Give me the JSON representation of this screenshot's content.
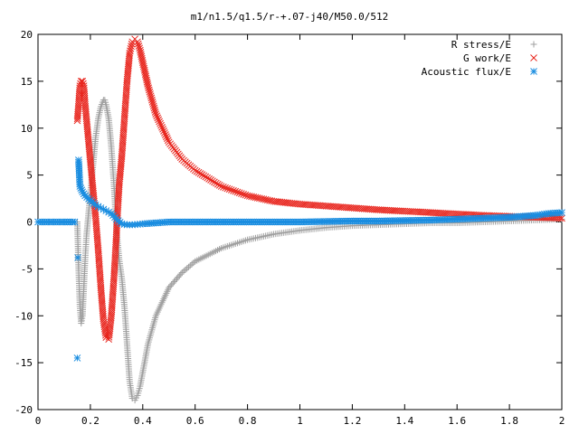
{
  "chart_data": {
    "type": "scatter",
    "title": "m1/n1.5/q1.5/r-+.07-j40/M50.0/512",
    "xlabel": "",
    "ylabel": "",
    "xlim": [
      0,
      2
    ],
    "ylim": [
      -20,
      20
    ],
    "x_ticks": [
      "0",
      "0.2",
      "0.4",
      "0.6",
      "0.8",
      "1",
      "1.2",
      "1.4",
      "1.6",
      "1.8",
      "2"
    ],
    "y_ticks": [
      "20",
      "15",
      "10",
      "5",
      "0",
      "-5",
      "-10",
      "-15",
      "-20"
    ],
    "grid": false,
    "legend_position": "top-right",
    "series": [
      {
        "name": "R stress/E",
        "marker": "plus",
        "color": "#a0a0a0",
        "points": [
          [
            0.15,
            0
          ],
          [
            0.155,
            -5
          ],
          [
            0.16,
            -9
          ],
          [
            0.165,
            -10.8
          ],
          [
            0.17,
            -10
          ],
          [
            0.175,
            -7
          ],
          [
            0.18,
            -4
          ],
          [
            0.185,
            -1.5
          ],
          [
            0.2,
            3
          ],
          [
            0.21,
            6
          ],
          [
            0.22,
            9
          ],
          [
            0.23,
            11
          ],
          [
            0.24,
            12.3
          ],
          [
            0.25,
            13
          ],
          [
            0.255,
            13
          ],
          [
            0.26,
            12.5
          ],
          [
            0.27,
            11
          ],
          [
            0.28,
            8
          ],
          [
            0.29,
            4
          ],
          [
            0.3,
            -1
          ],
          [
            0.31,
            -4
          ],
          [
            0.32,
            -6
          ],
          [
            0.33,
            -9
          ],
          [
            0.34,
            -13
          ],
          [
            0.35,
            -17
          ],
          [
            0.36,
            -18.8
          ],
          [
            0.37,
            -19
          ],
          [
            0.38,
            -18.5
          ],
          [
            0.39,
            -17.5
          ],
          [
            0.4,
            -16
          ],
          [
            0.42,
            -13
          ],
          [
            0.45,
            -10
          ],
          [
            0.5,
            -7
          ],
          [
            0.55,
            -5.4
          ],
          [
            0.6,
            -4.2
          ],
          [
            0.7,
            -2.8
          ],
          [
            0.8,
            -1.9
          ],
          [
            0.9,
            -1.3
          ],
          [
            1.0,
            -0.9
          ],
          [
            1.1,
            -0.6
          ],
          [
            1.2,
            -0.4
          ],
          [
            1.3,
            -0.3
          ],
          [
            1.4,
            -0.2
          ],
          [
            1.5,
            -0.1
          ],
          [
            1.6,
            -0.1
          ],
          [
            1.7,
            0
          ],
          [
            1.8,
            0.1
          ],
          [
            1.9,
            0.2
          ],
          [
            2.0,
            0.3
          ]
        ]
      },
      {
        "name": "G work/E",
        "marker": "cross",
        "color": "#e8251d",
        "points": [
          [
            0.15,
            10.8
          ],
          [
            0.155,
            12.5
          ],
          [
            0.16,
            14.5
          ],
          [
            0.165,
            15
          ],
          [
            0.17,
            15
          ],
          [
            0.175,
            14.5
          ],
          [
            0.18,
            12.5
          ],
          [
            0.19,
            9.5
          ],
          [
            0.2,
            6.5
          ],
          [
            0.21,
            3.5
          ],
          [
            0.22,
            0.5
          ],
          [
            0.23,
            -3
          ],
          [
            0.24,
            -7
          ],
          [
            0.25,
            -10.5
          ],
          [
            0.26,
            -12.3
          ],
          [
            0.27,
            -12.5
          ],
          [
            0.28,
            -10
          ],
          [
            0.29,
            -6
          ],
          [
            0.3,
            -1
          ],
          [
            0.31,
            4
          ],
          [
            0.32,
            7
          ],
          [
            0.33,
            11
          ],
          [
            0.34,
            15
          ],
          [
            0.35,
            18
          ],
          [
            0.36,
            19.2
          ],
          [
            0.37,
            19.5
          ],
          [
            0.38,
            19.2
          ],
          [
            0.39,
            18.3
          ],
          [
            0.4,
            17
          ],
          [
            0.42,
            14.5
          ],
          [
            0.45,
            11.5
          ],
          [
            0.5,
            8.5
          ],
          [
            0.55,
            6.7
          ],
          [
            0.6,
            5.5
          ],
          [
            0.7,
            3.8
          ],
          [
            0.8,
            2.8
          ],
          [
            0.9,
            2.2
          ],
          [
            1.0,
            1.9
          ],
          [
            1.1,
            1.7
          ],
          [
            1.2,
            1.5
          ],
          [
            1.3,
            1.3
          ],
          [
            1.4,
            1.15
          ],
          [
            1.5,
            1.0
          ],
          [
            1.6,
            0.85
          ],
          [
            1.7,
            0.7
          ],
          [
            1.8,
            0.6
          ],
          [
            1.9,
            0.5
          ],
          [
            2.0,
            0.4
          ]
        ]
      },
      {
        "name": "Acoustic flux/E",
        "marker": "star",
        "color": "#1a8de0",
        "points": [
          [
            0.0,
            0
          ],
          [
            0.05,
            0
          ],
          [
            0.1,
            0
          ],
          [
            0.14,
            0
          ],
          [
            0.15,
            -14.5
          ],
          [
            0.152,
            -3.8
          ],
          [
            0.155,
            6.6
          ],
          [
            0.158,
            5
          ],
          [
            0.16,
            3.8
          ],
          [
            0.17,
            3.2
          ],
          [
            0.18,
            2.8
          ],
          [
            0.2,
            2.3
          ],
          [
            0.22,
            1.8
          ],
          [
            0.24,
            1.5
          ],
          [
            0.26,
            1.2
          ],
          [
            0.28,
            0.9
          ],
          [
            0.3,
            0.3
          ],
          [
            0.32,
            -0.2
          ],
          [
            0.34,
            -0.3
          ],
          [
            0.36,
            -0.3
          ],
          [
            0.38,
            -0.25
          ],
          [
            0.4,
            -0.2
          ],
          [
            0.45,
            -0.1
          ],
          [
            0.5,
            0
          ],
          [
            0.6,
            0
          ],
          [
            0.7,
            0
          ],
          [
            0.8,
            0
          ],
          [
            0.9,
            0
          ],
          [
            1.0,
            0
          ],
          [
            1.1,
            0.05
          ],
          [
            1.2,
            0.1
          ],
          [
            1.3,
            0.1
          ],
          [
            1.4,
            0.15
          ],
          [
            1.5,
            0.2
          ],
          [
            1.6,
            0.3
          ],
          [
            1.7,
            0.4
          ],
          [
            1.8,
            0.5
          ],
          [
            1.9,
            0.7
          ],
          [
            1.95,
            0.9
          ],
          [
            2.0,
            1.0
          ]
        ]
      }
    ]
  }
}
